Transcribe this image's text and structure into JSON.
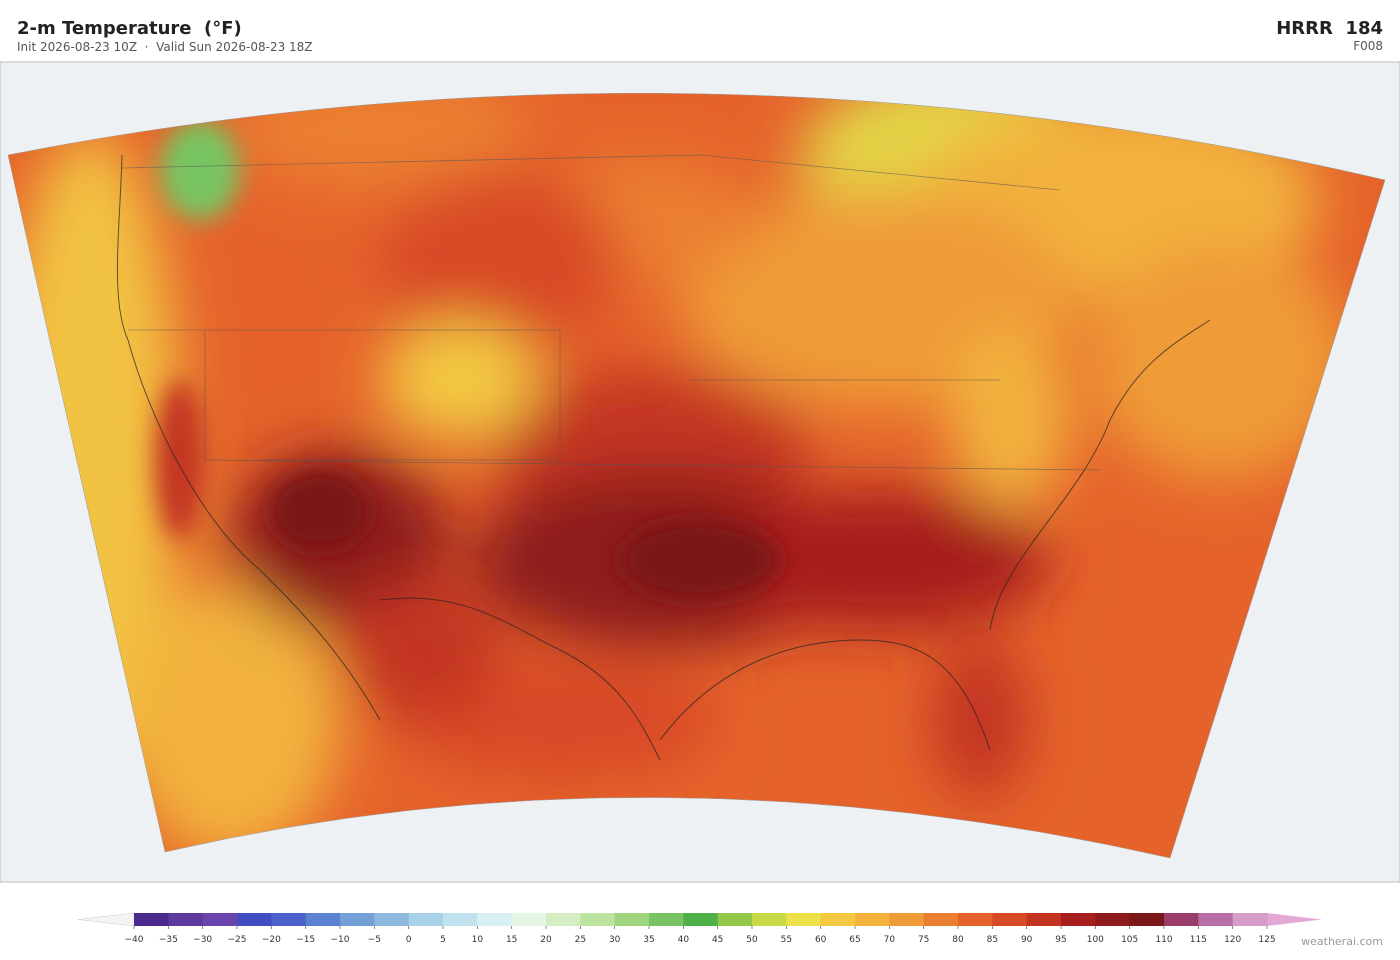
{
  "header": {
    "title": "2-m Temperature  (°F)",
    "subtitle": "Init 2026-08-23 10Z  ·  Valid Sun 2026-08-23 18Z",
    "model": "HRRR  184",
    "forecast_hour": "F008"
  },
  "colorbar": {
    "ticks": [
      "−40",
      "−35",
      "−30",
      "−25",
      "−20",
      "−15",
      "−10",
      "−5",
      "0",
      "5",
      "10",
      "15",
      "20",
      "25",
      "30",
      "35",
      "40",
      "45",
      "50",
      "55",
      "60",
      "65",
      "70",
      "75",
      "80",
      "85",
      "90",
      "95",
      "100",
      "105",
      "110",
      "115",
      "120",
      "125"
    ],
    "colors": [
      "#4a2a8c",
      "#5f3a9e",
      "#6b45ad",
      "#3f4fbf",
      "#4a62c9",
      "#5b82d0",
      "#74a0d8",
      "#8fb8de",
      "#a9d2e8",
      "#c0e2ef",
      "#d8f0f2",
      "#e6f6e6",
      "#d5edc3",
      "#bde3a0",
      "#9ed57e",
      "#78c462",
      "#4fb048",
      "#93c747",
      "#c9d846",
      "#ede14a",
      "#f3c843",
      "#f2b23c",
      "#ef9b37",
      "#eb7f31",
      "#e5632b",
      "#d84a25",
      "#c33420",
      "#a61e1e",
      "#8e1a1c",
      "#7a1719",
      "#9a3d6a",
      "#b86fa6",
      "#d49ec9"
    ],
    "under_color": "#f4f4f4",
    "over_color": "#e3a8d6"
  },
  "footer": {
    "credit": "weatherai.com"
  }
}
